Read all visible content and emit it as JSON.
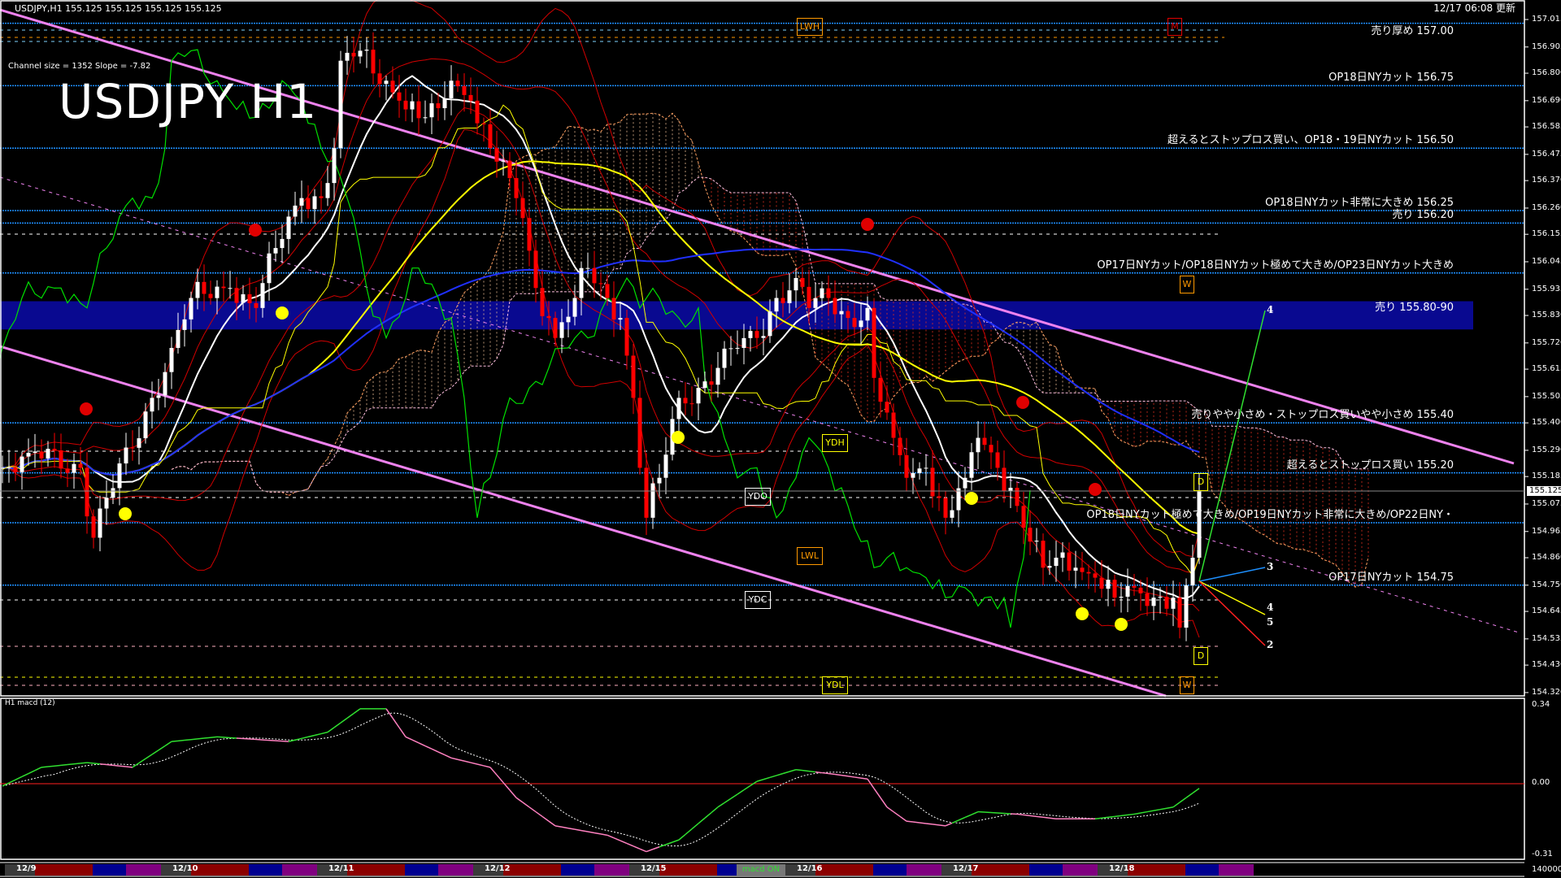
{
  "header": {
    "symbol_info": "USDJPY,H1  155.125 155.125 155.125 155.125",
    "channel_info": "Channel size = 1352 Slope = -7.82",
    "big_title": "USDJPY H1",
    "updated": "12/17 06:08 更新",
    "current_price": "155.125"
  },
  "levels": [
    {
      "price": 157.0,
      "label": "売り厚め 157.00"
    },
    {
      "price": 156.75,
      "label": "OP18日NYカット 156.75"
    },
    {
      "price": 156.5,
      "label": "超えるとストップロス買い、OP18・19日NYカット 156.50"
    },
    {
      "price": 156.25,
      "label": "OP18日NYカット非常に大きめ 156.25"
    },
    {
      "price": 156.2,
      "label": "売り 156.20"
    },
    {
      "price": 156.0,
      "label": "OP17日NYカット/OP18日NYカット極めて大きめ/OP23日NYカット大きめ"
    },
    {
      "price": 155.4,
      "label": "売りやや小さめ・ストップロス買いやや小さめ 155.40"
    },
    {
      "price": 155.2,
      "label": "超えるとストップロス買い 155.20"
    },
    {
      "price": 155.0,
      "label": "OP18日NYカット極めて大きめ/OP19日NYカット非常に大きめ/OP22日NY・"
    },
    {
      "price": 154.75,
      "label": "OP17日NYカット 154.75"
    }
  ],
  "zone": {
    "from": 155.8,
    "to": 155.9,
    "label": "売り 155.80-90"
  },
  "markers": {
    "lwh": "LWH",
    "m": "M",
    "lwl": "LWL",
    "ydh": "YDH",
    "ydo": "YDO",
    "ydc": "YDC",
    "ydl": "YDL",
    "w1": "W",
    "w2": "W",
    "d1": "D",
    "d2": "D"
  },
  "projection_numbers": {
    "a": "4",
    "b": "3",
    "c": "4",
    "d": "5",
    "e": "2"
  },
  "macd_panel": {
    "label": "H1 macd (12)",
    "ticks": [
      "0.34",
      "0.00",
      "-0.31"
    ]
  },
  "time_axis": {
    "dates": [
      "12/9",
      "12/10",
      "12/11",
      "12/12",
      "12/15",
      "12/16",
      "12/17",
      "12/18"
    ],
    "macd_toggle": "macd ON",
    "volume_tick": "140000"
  },
  "colors": {
    "background": "#000000",
    "level_line": "#1e90ff",
    "trend_line": "#ee82ee",
    "bull_candle": "#ffffff",
    "bear_candle": "#ff0000",
    "ma_fast": "#ffffff",
    "ma_slow": "#ffff00",
    "ma_long": "#2030ff",
    "chikou": "#00e000",
    "zone": "#0a0aa0",
    "macd_up": "#30e030",
    "macd_down": "#ff80c0"
  },
  "chart_data": [
    {
      "type": "candlestick",
      "title": "USDJPY H1",
      "ylim": [
        154.32,
        157.015
      ],
      "yticks": [
        "157.015",
        "156.905",
        "156.800",
        "156.690",
        "156.585",
        "156.475",
        "156.370",
        "156.260",
        "156.155",
        "156.045",
        "155.935",
        "155.830",
        "155.720",
        "155.615",
        "155.505",
        "155.400",
        "155.290",
        "155.185",
        "155.075",
        "154.965",
        "154.860",
        "154.750",
        "154.645",
        "154.535",
        "154.430",
        "154.320"
      ],
      "close_path": [
        [
          "12/8 21:00",
          155.22
        ],
        [
          "12/9 01:00",
          155.28
        ],
        [
          "12/9 09:00",
          155.22
        ],
        [
          "12/9 11:00",
          154.94
        ],
        [
          "12/9 13:00",
          155.1
        ],
        [
          "12/9 17:00",
          155.3
        ],
        [
          "12/9 20:00",
          155.5
        ],
        [
          "12/9 23:00",
          155.7
        ],
        [
          "12/10 02:00",
          155.9
        ],
        [
          "12/10 08:00",
          155.94
        ],
        [
          "12/10 12:00",
          155.86
        ],
        [
          "12/10 15:00",
          156.1
        ],
        [
          "12/10 19:00",
          156.3
        ],
        [
          "12/10 22:00",
          156.3
        ],
        [
          "12/11 00:00",
          156.5
        ],
        [
          "12/11 01:00",
          156.85
        ],
        [
          "12/11 04:00",
          156.89
        ],
        [
          "12/11 08:00",
          156.77
        ],
        [
          "12/11 10:00",
          156.69
        ],
        [
          "12/11 13:00",
          156.62
        ],
        [
          "12/11 16:00",
          156.66
        ],
        [
          "12/11 18:00",
          156.77
        ],
        [
          "12/11 21:00",
          156.69
        ],
        [
          "12/12 00:00",
          156.5
        ],
        [
          "12/12 03:00",
          156.38
        ],
        [
          "12/12 05:00",
          156.22
        ],
        [
          "12/12 07:00",
          155.94
        ],
        [
          "12/12 09:00",
          155.82
        ],
        [
          "12/12 10:00",
          155.74
        ],
        [
          "12/12 13:00",
          155.9
        ],
        [
          "12/12 15:00",
          156.02
        ],
        [
          "12/12 18:00",
          155.9
        ],
        [
          "12/12 20:00",
          155.82
        ],
        [
          "12/12 22:00",
          155.5
        ],
        [
          "12/12 23:00",
          155.22
        ],
        [
          "12/15 00:00",
          155.02
        ],
        [
          "12/15 02:00",
          155.18
        ],
        [
          "12/15 05:00",
          155.5
        ],
        [
          "12/15 08:00",
          155.54
        ],
        [
          "12/15 11:00",
          155.62
        ],
        [
          "12/15 14:00",
          155.7
        ],
        [
          "12/15 17:00",
          155.74
        ],
        [
          "12/15 20:00",
          155.9
        ],
        [
          "12/15 23:00",
          155.98
        ],
        [
          "12/16 01:00",
          155.86
        ],
        [
          "12/16 04:00",
          155.9
        ],
        [
          "12/16 07:00",
          155.82
        ],
        [
          "12/16 10:00",
          155.86
        ],
        [
          "12/16 11:00",
          155.58
        ],
        [
          "12/16 14:00",
          155.34
        ],
        [
          "12/16 16:00",
          155.18
        ],
        [
          "12/16 19:00",
          155.22
        ],
        [
          "12/16 22:00",
          155.02
        ],
        [
          "12/17 01:00",
          155.18
        ],
        [
          "12/17 03:00",
          155.34
        ],
        [
          "12/17 06:00",
          155.22
        ],
        [
          "12/17 08:00",
          155.14
        ],
        [
          "12/17 10:00",
          154.98
        ],
        [
          "12/17 13:00",
          154.82
        ],
        [
          "12/17 15:00",
          154.86
        ],
        [
          "12/17 18:00",
          154.82
        ],
        [
          "12/17 21:00",
          154.78
        ],
        [
          "12/18 00:00",
          154.7
        ],
        [
          "12/18 03:00",
          154.74
        ],
        [
          "12/18 06:00",
          154.7
        ],
        [
          "12/18 09:00",
          154.7
        ],
        [
          "12/18 10:00",
          154.58
        ],
        [
          "12/18 12:00",
          154.86
        ],
        [
          "12/18 13:00",
          155.13
        ]
      ]
    },
    {
      "type": "line",
      "title": "H1 macd (12)",
      "ylim": [
        -0.31,
        0.34
      ],
      "values": [
        [
          "12/8 21:00",
          -0.01
        ],
        [
          "12/9 03:00",
          0.07
        ],
        [
          "12/9 10:00",
          0.09
        ],
        [
          "12/9 17:00",
          0.07
        ],
        [
          "12/9 23:00",
          0.18
        ],
        [
          "12/10 06:00",
          0.2
        ],
        [
          "12/10 17:00",
          0.18
        ],
        [
          "12/10 23:00",
          0.22
        ],
        [
          "12/11 04:00",
          0.32
        ],
        [
          "12/11 08:00",
          0.32
        ],
        [
          "12/11 11:00",
          0.2
        ],
        [
          "12/11 18:00",
          0.11
        ],
        [
          "12/12 00:00",
          0.07
        ],
        [
          "12/12 04:00",
          -0.06
        ],
        [
          "12/12 10:00",
          -0.18
        ],
        [
          "12/12 18:00",
          -0.22
        ],
        [
          "12/15 00:00",
          -0.29
        ],
        [
          "12/15 05:00",
          -0.24
        ],
        [
          "12/15 11:00",
          -0.1
        ],
        [
          "12/15 17:00",
          0.01
        ],
        [
          "12/15 23:00",
          0.06
        ],
        [
          "12/16 05:00",
          0.04
        ],
        [
          "12/16 10:00",
          0.02
        ],
        [
          "12/16 13:00",
          -0.1
        ],
        [
          "12/16 16:00",
          -0.16
        ],
        [
          "12/16 22:00",
          -0.18
        ],
        [
          "12/17 03:00",
          -0.12
        ],
        [
          "12/17 09:00",
          -0.13
        ],
        [
          "12/17 15:00",
          -0.15
        ],
        [
          "12/17 21:00",
          -0.15
        ],
        [
          "12/18 03:00",
          -0.13
        ],
        [
          "12/18 09:00",
          -0.1
        ],
        [
          "12/18 13:00",
          -0.02
        ]
      ]
    }
  ]
}
